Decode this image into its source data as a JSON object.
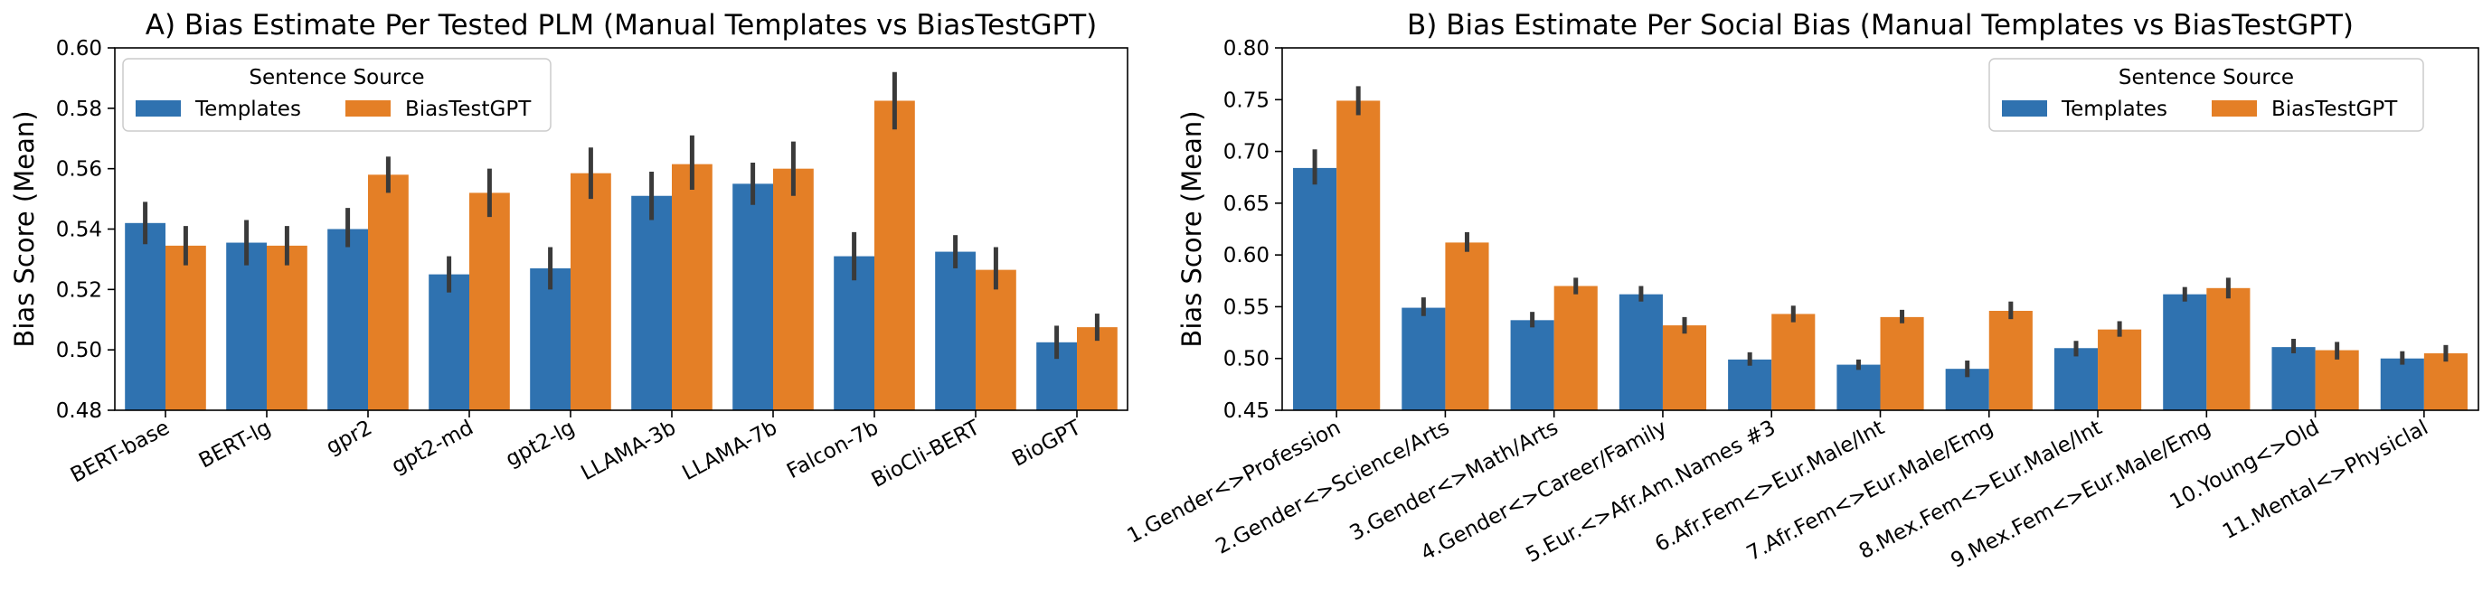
{
  "colors": {
    "templates": "#2f72b0",
    "biastestgpt": "#e47f26",
    "errorbar": "#3a3a3a"
  },
  "chart_data": [
    {
      "type": "bar",
      "title": "A) Bias Estimate Per Tested PLM (Manual Templates vs BiasTestGPT)",
      "xlabel": "",
      "ylabel": "Bias Score (Mean)",
      "ylim": [
        0.48,
        0.6
      ],
      "yticks": [
        "0.48",
        "0.50",
        "0.52",
        "0.54",
        "0.56",
        "0.58",
        "0.60"
      ],
      "legend_title": "Sentence Source",
      "legend_position": "top-left",
      "categories": [
        "BERT-base",
        "BERT-lg",
        "gpr2",
        "gpt2-md",
        "gpt2-lg",
        "LLAMA-3b",
        "LLAMA-7b",
        "Falcon-7b",
        "BioCli-BERT",
        "BioGPT"
      ],
      "series": [
        {
          "name": "Templates",
          "values": [
            0.542,
            0.5355,
            0.54,
            0.525,
            0.527,
            0.551,
            0.555,
            0.531,
            0.5325,
            0.5025
          ],
          "err_low": [
            0.535,
            0.528,
            0.534,
            0.519,
            0.52,
            0.543,
            0.548,
            0.523,
            0.527,
            0.497
          ],
          "err_high": [
            0.549,
            0.543,
            0.547,
            0.531,
            0.534,
            0.559,
            0.562,
            0.539,
            0.538,
            0.508
          ]
        },
        {
          "name": "BiasTestGPT",
          "values": [
            0.5345,
            0.5345,
            0.558,
            0.552,
            0.5585,
            0.5615,
            0.56,
            0.5825,
            0.5265,
            0.5075
          ],
          "err_low": [
            0.528,
            0.528,
            0.552,
            0.544,
            0.55,
            0.553,
            0.551,
            0.573,
            0.52,
            0.503
          ],
          "err_high": [
            0.541,
            0.541,
            0.564,
            0.56,
            0.567,
            0.571,
            0.569,
            0.592,
            0.534,
            0.512
          ]
        }
      ]
    },
    {
      "type": "bar",
      "title": "B) Bias Estimate Per Social Bias (Manual Templates vs BiasTestGPT)",
      "xlabel": "",
      "ylabel": "Bias Score (Mean)",
      "ylim": [
        0.45,
        0.8
      ],
      "yticks": [
        "0.45",
        "0.50",
        "0.55",
        "0.60",
        "0.65",
        "0.70",
        "0.75",
        "0.80"
      ],
      "legend_title": "Sentence Source",
      "legend_position": "top-right",
      "categories": [
        "1.Gender<>Profession",
        "2.Gender<>Science/Arts",
        "3.Gender<>Math/Arts",
        "4.Gender<>Career/Family",
        "5.Eur.<>Afr.Am.Names #3",
        "6.Afr.Fem<>Eur.Male/Int",
        "7.Afr.Fem<>Eur.Male/Emg",
        "8.Mex.Fem<>Eur.Male/Int",
        "9.Mex.Fem<>Eur.Male/Emg",
        "10.Young<>Old",
        "11.Mental<>Physiclal"
      ],
      "series": [
        {
          "name": "Templates",
          "values": [
            0.684,
            0.549,
            0.537,
            0.562,
            0.499,
            0.494,
            0.49,
            0.51,
            0.562,
            0.511,
            0.5
          ],
          "err_low": [
            0.668,
            0.541,
            0.53,
            0.555,
            0.493,
            0.489,
            0.482,
            0.502,
            0.555,
            0.505,
            0.494
          ],
          "err_high": [
            0.702,
            0.559,
            0.545,
            0.57,
            0.506,
            0.499,
            0.498,
            0.517,
            0.569,
            0.519,
            0.507
          ]
        },
        {
          "name": "BiasTestGPT",
          "values": [
            0.749,
            0.612,
            0.57,
            0.532,
            0.543,
            0.54,
            0.546,
            0.528,
            0.568,
            0.508,
            0.505
          ],
          "err_low": [
            0.735,
            0.603,
            0.562,
            0.524,
            0.535,
            0.534,
            0.538,
            0.521,
            0.558,
            0.499,
            0.497
          ],
          "err_high": [
            0.763,
            0.622,
            0.578,
            0.54,
            0.551,
            0.547,
            0.555,
            0.536,
            0.578,
            0.516,
            0.513
          ]
        }
      ]
    }
  ]
}
